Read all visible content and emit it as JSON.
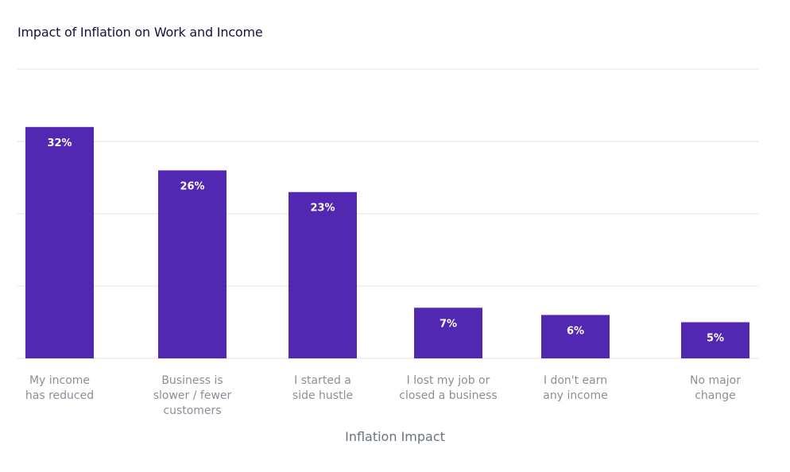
{
  "chart_data": {
    "type": "bar",
    "title": "Impact of Inflation on Work and Income",
    "xlabel": "Inflation Impact",
    "ylabel": "",
    "categories": [
      [
        "My income",
        "has reduced"
      ],
      [
        "Business is",
        "slower / fewer",
        "customers"
      ],
      [
        "I started a",
        "side hustle"
      ],
      [
        "I lost my job or",
        "closed a business"
      ],
      [
        "I don't earn",
        "any income"
      ],
      [
        "No major",
        "change"
      ]
    ],
    "values": [
      32,
      26,
      23,
      7,
      6,
      5
    ],
    "value_labels": [
      "32%",
      "26%",
      "23%",
      "7%",
      "6%",
      "5%"
    ],
    "ylim": [
      0,
      40
    ],
    "grid": true,
    "bar_color": "#5227b1",
    "grid_color": "#e2e2e2"
  }
}
